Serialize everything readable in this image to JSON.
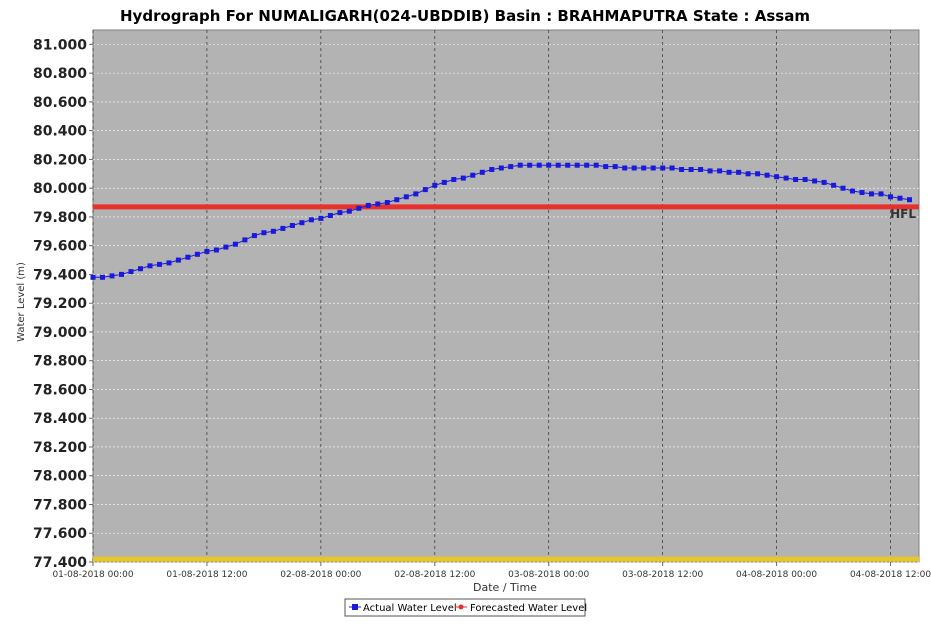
{
  "chart_data": {
    "type": "line",
    "title": "Hydrograph For NUMALIGARH(024-UBDDIB) Basin : BRAHMAPUTRA State : Assam",
    "xlabel": "Date / Time",
    "ylabel": "Water Level (m)",
    "ylim": [
      77.4,
      81.1
    ],
    "xlim": [
      "2018-08-01T00:00",
      "2018-08-04T15:00"
    ],
    "x_ticks": [
      {
        "t": "2018-08-01T00:00",
        "label": "01-08-2018 00:00"
      },
      {
        "t": "2018-08-01T12:00",
        "label": "01-08-2018 12:00"
      },
      {
        "t": "2018-08-02T00:00",
        "label": "02-08-2018 00:00"
      },
      {
        "t": "2018-08-02T12:00",
        "label": "02-08-2018 12:00"
      },
      {
        "t": "2018-08-03T00:00",
        "label": "03-08-2018 00:00"
      },
      {
        "t": "2018-08-03T12:00",
        "label": "03-08-2018 12:00"
      },
      {
        "t": "2018-08-04T00:00",
        "label": "04-08-2018 00:00"
      },
      {
        "t": "2018-08-04T12:00",
        "label": "04-08-2018 12:00"
      }
    ],
    "y_ticks": [
      "77.400",
      "77.600",
      "77.800",
      "78.000",
      "78.200",
      "78.400",
      "78.600",
      "78.800",
      "79.000",
      "79.200",
      "79.400",
      "79.600",
      "79.800",
      "80.000",
      "80.200",
      "80.400",
      "80.600",
      "80.800",
      "81.000"
    ],
    "grid": true,
    "reference_lines": [
      {
        "label": "HFL",
        "value": 79.87,
        "color": "#e8302c"
      },
      {
        "label": "",
        "value": 77.42,
        "color": "#e8c52a"
      }
    ],
    "series": [
      {
        "name": "Actual Water Level",
        "color": "#1a1adb",
        "marker": "square",
        "start": "2018-08-01T00:00",
        "interval_hours": 1,
        "values": [
          79.38,
          79.38,
          79.39,
          79.4,
          79.42,
          79.44,
          79.46,
          79.47,
          79.48,
          79.5,
          79.52,
          79.54,
          79.56,
          79.57,
          79.59,
          79.61,
          79.64,
          79.67,
          79.69,
          79.7,
          79.72,
          79.74,
          79.76,
          79.78,
          79.79,
          79.81,
          79.83,
          79.84,
          79.86,
          79.88,
          79.89,
          79.9,
          79.92,
          79.94,
          79.96,
          79.99,
          80.02,
          80.04,
          80.06,
          80.07,
          80.09,
          80.11,
          80.13,
          80.14,
          80.15,
          80.16,
          80.16,
          80.16,
          80.16,
          80.16,
          80.16,
          80.16,
          80.16,
          80.16,
          80.15,
          80.15,
          80.14,
          80.14,
          80.14,
          80.14,
          80.14,
          80.14,
          80.13,
          80.13,
          80.13,
          80.12,
          80.12,
          80.11,
          80.11,
          80.1,
          80.1,
          80.09,
          80.08,
          80.07,
          80.06,
          80.06,
          80.05,
          80.04,
          80.02,
          80.0,
          79.98,
          79.97,
          79.96,
          79.96,
          79.94,
          79.93,
          79.92
        ]
      },
      {
        "name": "Forecasted Water Level",
        "color": "#e8302c",
        "marker": "dot",
        "start": "2018-08-01T00:00",
        "interval_hours": 1,
        "values": []
      }
    ],
    "legend_position": "bottom-center"
  }
}
